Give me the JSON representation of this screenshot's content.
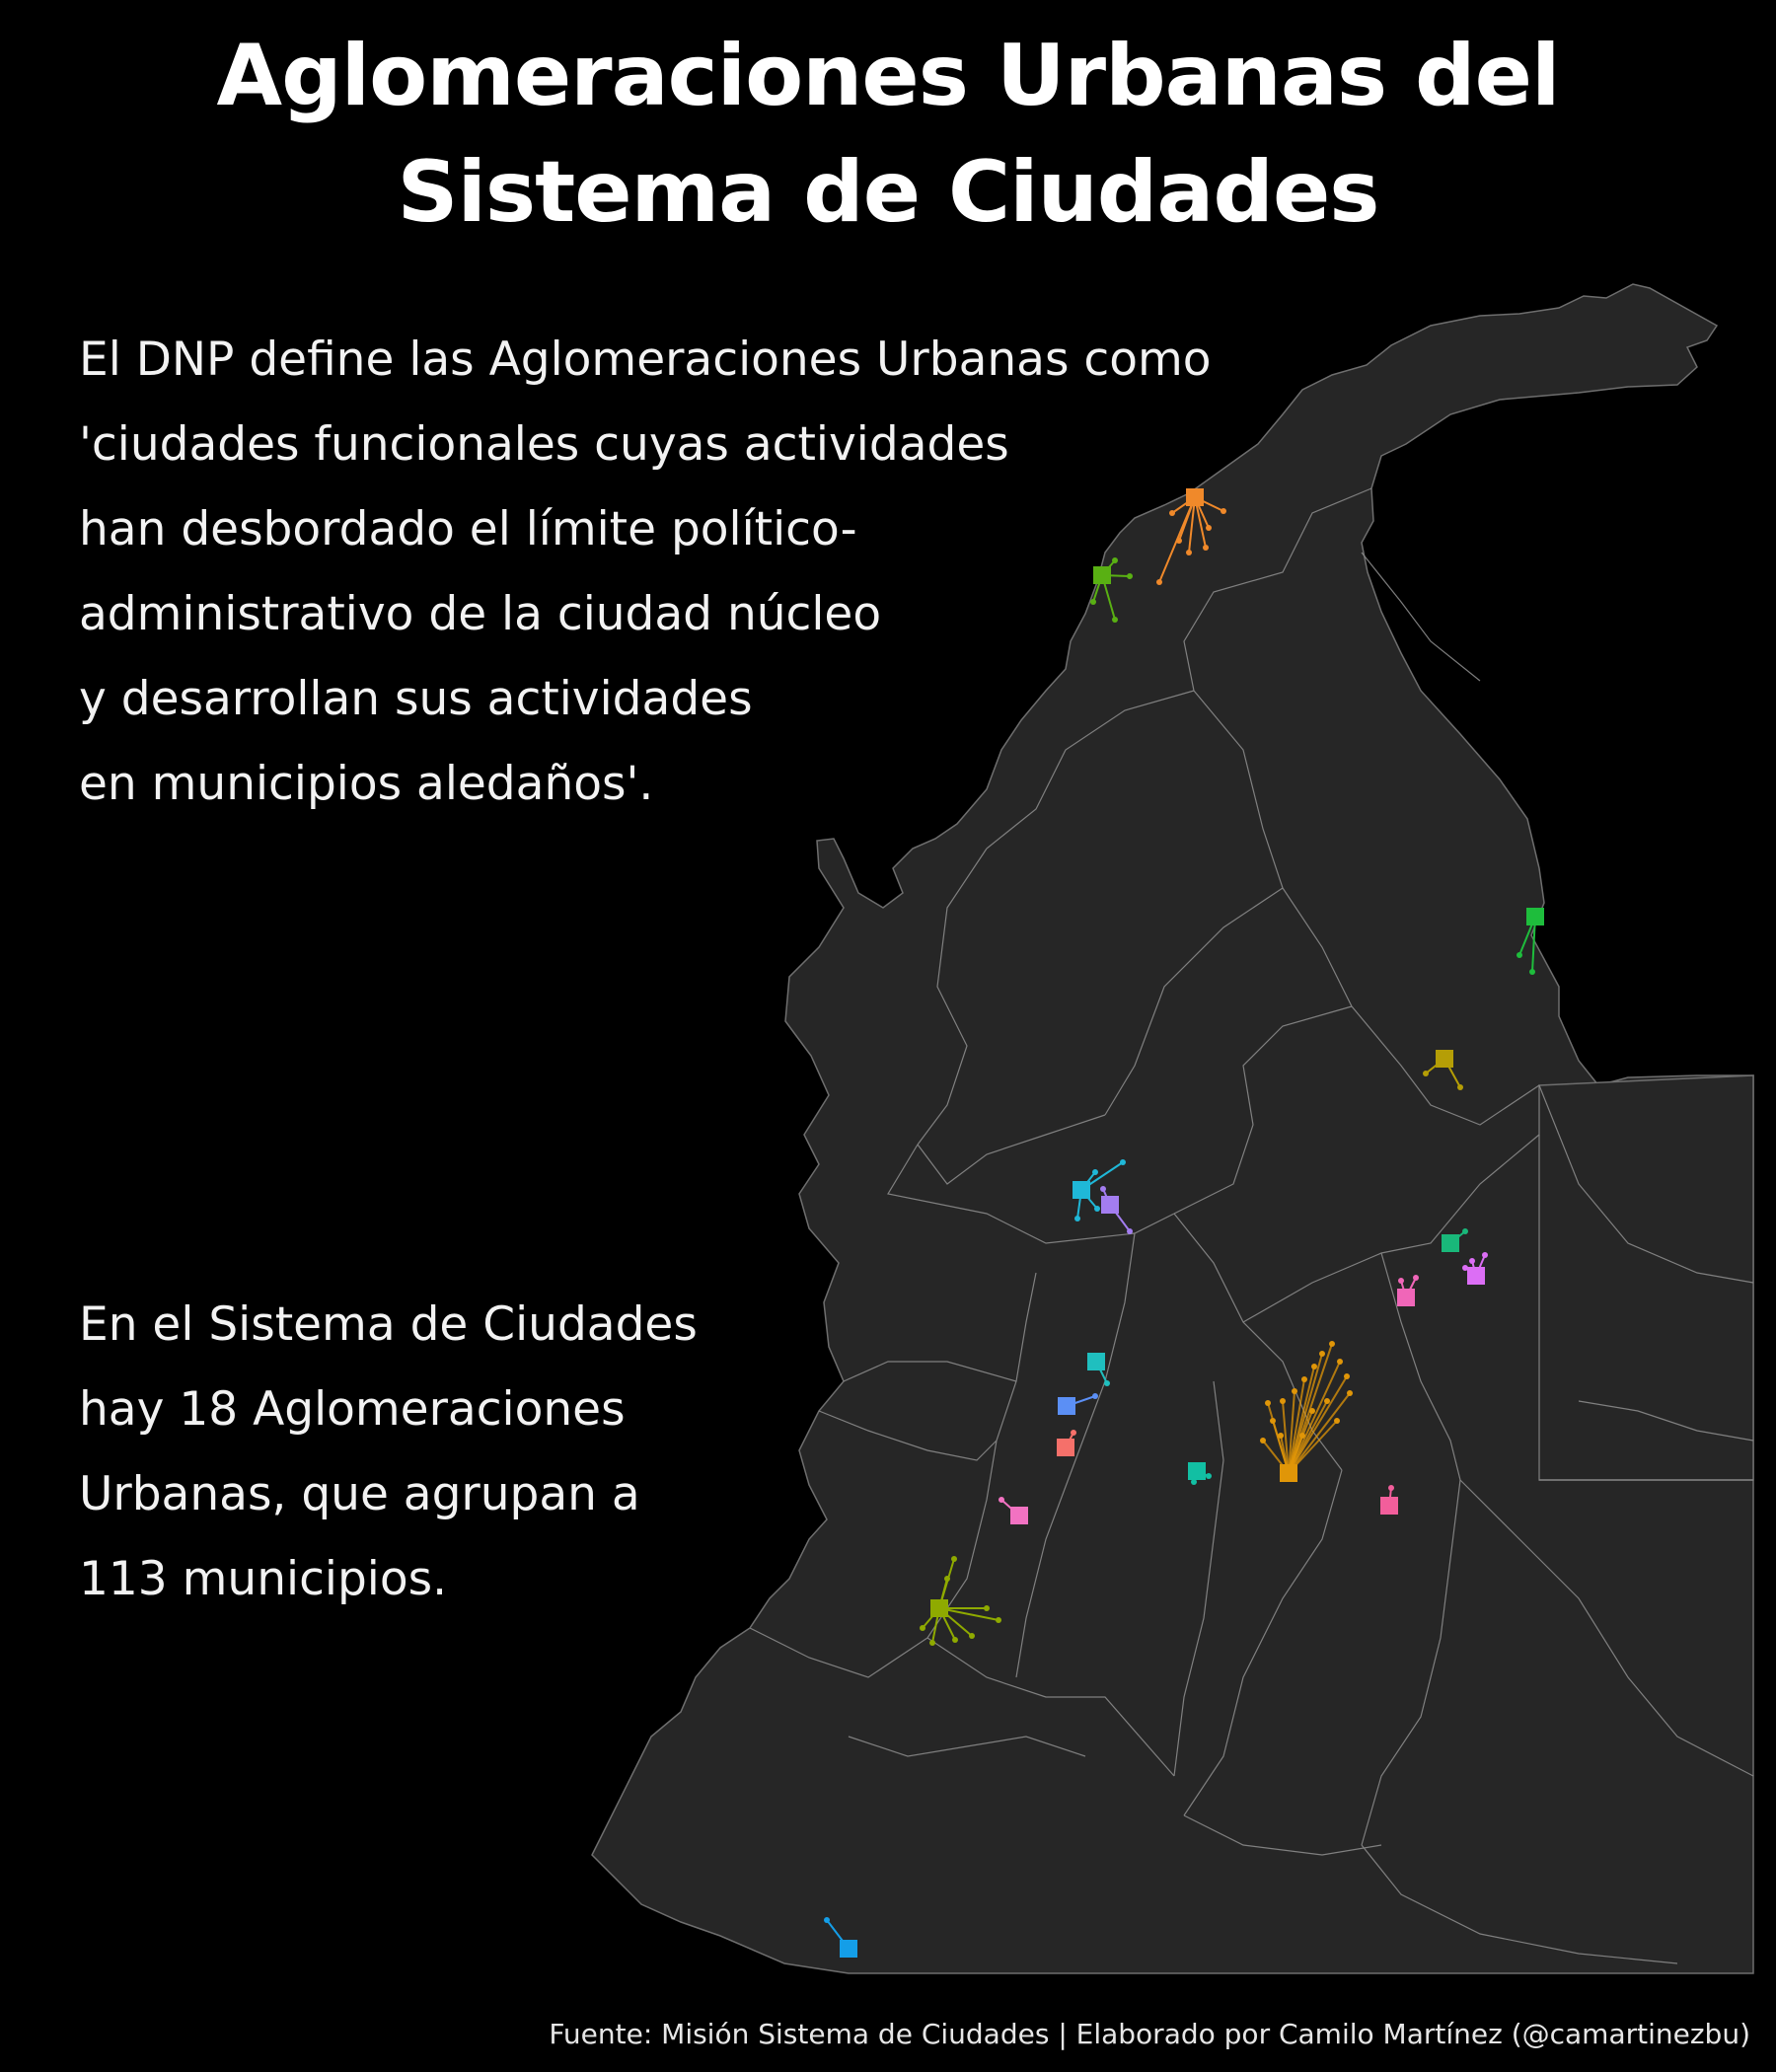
{
  "title": {
    "line1": "Aglomeraciones Urbanas del",
    "line2": "Sistema de Ciudades"
  },
  "intro": {
    "lines": [
      "El DNP define las Aglomeraciones Urbanas como",
      "'ciudades funcionales cuyas actividades",
      "han desbordado el límite político-",
      "administrativo de la ciudad núcleo",
      "y desarrollan sus actividades",
      "en municipios aledaños'."
    ]
  },
  "stats": {
    "lines": [
      "En el Sistema de Ciudades",
      "hay 18 Aglomeraciones",
      "Urbanas, que agrupan a",
      "113 municipios."
    ]
  },
  "source": "Fuente: Misión Sistema de Ciudades | Elaborado por Camilo Martínez (@camartinezbu)",
  "map": {
    "land_color": "#262626",
    "border_color": "#8a8a8a",
    "agglomeration_count": 18,
    "municipality_count": 113
  }
}
